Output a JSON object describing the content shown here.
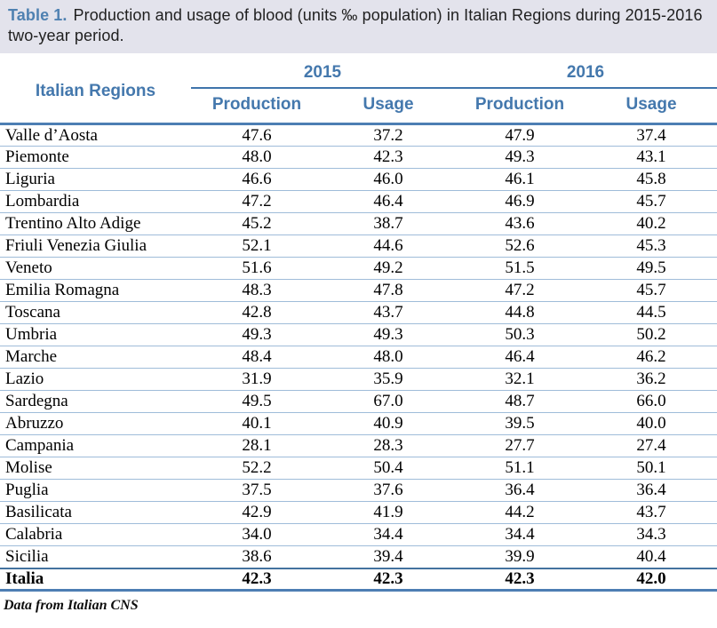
{
  "title": {
    "label": "Table 1.",
    "text": "Production and usage of blood (units ‰ population) in Italian Regions during 2015-2016 two-year period."
  },
  "table": {
    "region_header": "Italian Regions",
    "year_groups": [
      {
        "year": "2015",
        "columns": [
          "Production",
          "Usage"
        ]
      },
      {
        "year": "2016",
        "columns": [
          "Production",
          "Usage"
        ]
      }
    ],
    "rows": [
      {
        "region": "Valle d’Aosta",
        "values": [
          "47.6",
          "37.2",
          "47.9",
          "37.4"
        ],
        "bold": false
      },
      {
        "region": "Piemonte",
        "values": [
          "48.0",
          "42.3",
          "49.3",
          "43.1"
        ],
        "bold": false
      },
      {
        "region": "Liguria",
        "values": [
          "46.6",
          "46.0",
          "46.1",
          "45.8"
        ],
        "bold": false
      },
      {
        "region": "Lombardia",
        "values": [
          "47.2",
          "46.4",
          "46.9",
          "45.7"
        ],
        "bold": false
      },
      {
        "region": "Trentino Alto Adige",
        "values": [
          "45.2",
          "38.7",
          "43.6",
          "40.2"
        ],
        "bold": false
      },
      {
        "region": "Friuli Venezia Giulia",
        "values": [
          "52.1",
          "44.6",
          "52.6",
          "45.3"
        ],
        "bold": false
      },
      {
        "region": "Veneto",
        "values": [
          "51.6",
          "49.2",
          "51.5",
          "49.5"
        ],
        "bold": false
      },
      {
        "region": "Emilia Romagna",
        "values": [
          "48.3",
          "47.8",
          "47.2",
          "45.7"
        ],
        "bold": false
      },
      {
        "region": "Toscana",
        "values": [
          "42.8",
          "43.7",
          "44.8",
          "44.5"
        ],
        "bold": false
      },
      {
        "region": "Umbria",
        "values": [
          "49.3",
          "49.3",
          "50.3",
          "50.2"
        ],
        "bold": false
      },
      {
        "region": "Marche",
        "values": [
          "48.4",
          "48.0",
          "46.4",
          "46.2"
        ],
        "bold": false
      },
      {
        "region": "Lazio",
        "values": [
          "31.9",
          "35.9",
          "32.1",
          "36.2"
        ],
        "bold": false
      },
      {
        "region": "Sardegna",
        "values": [
          "49.5",
          "67.0",
          "48.7",
          "66.0"
        ],
        "bold": false
      },
      {
        "region": "Abruzzo",
        "values": [
          "40.1",
          "40.9",
          "39.5",
          "40.0"
        ],
        "bold": false
      },
      {
        "region": "Campania",
        "values": [
          "28.1",
          "28.3",
          "27.7",
          "27.4"
        ],
        "bold": false
      },
      {
        "region": "Molise",
        "values": [
          "52.2",
          "50.4",
          "51.1",
          "50.1"
        ],
        "bold": false
      },
      {
        "region": "Puglia",
        "values": [
          "37.5",
          "37.6",
          "36.4",
          "36.4"
        ],
        "bold": false
      },
      {
        "region": "Basilicata",
        "values": [
          "42.9",
          "41.9",
          "44.2",
          "43.7"
        ],
        "bold": false
      },
      {
        "region": "Calabria",
        "values": [
          "34.0",
          "34.4",
          "34.4",
          "34.3"
        ],
        "bold": false
      },
      {
        "region": "Sicilia",
        "values": [
          "38.6",
          "39.4",
          "39.9",
          "40.4"
        ],
        "bold": false
      },
      {
        "region": "Italia",
        "values": [
          "42.3",
          "42.3",
          "42.3",
          "42.0"
        ],
        "bold": true
      }
    ]
  },
  "footer": "Data from Italian CNS",
  "colors": {
    "caption_background": "#e3e3ec",
    "caption_accent": "#4f81b1",
    "header_text_blue": "#4478ad",
    "rule_dark_blue": "#4d7eb3",
    "rule_light_blue": "#9fbcd9"
  }
}
